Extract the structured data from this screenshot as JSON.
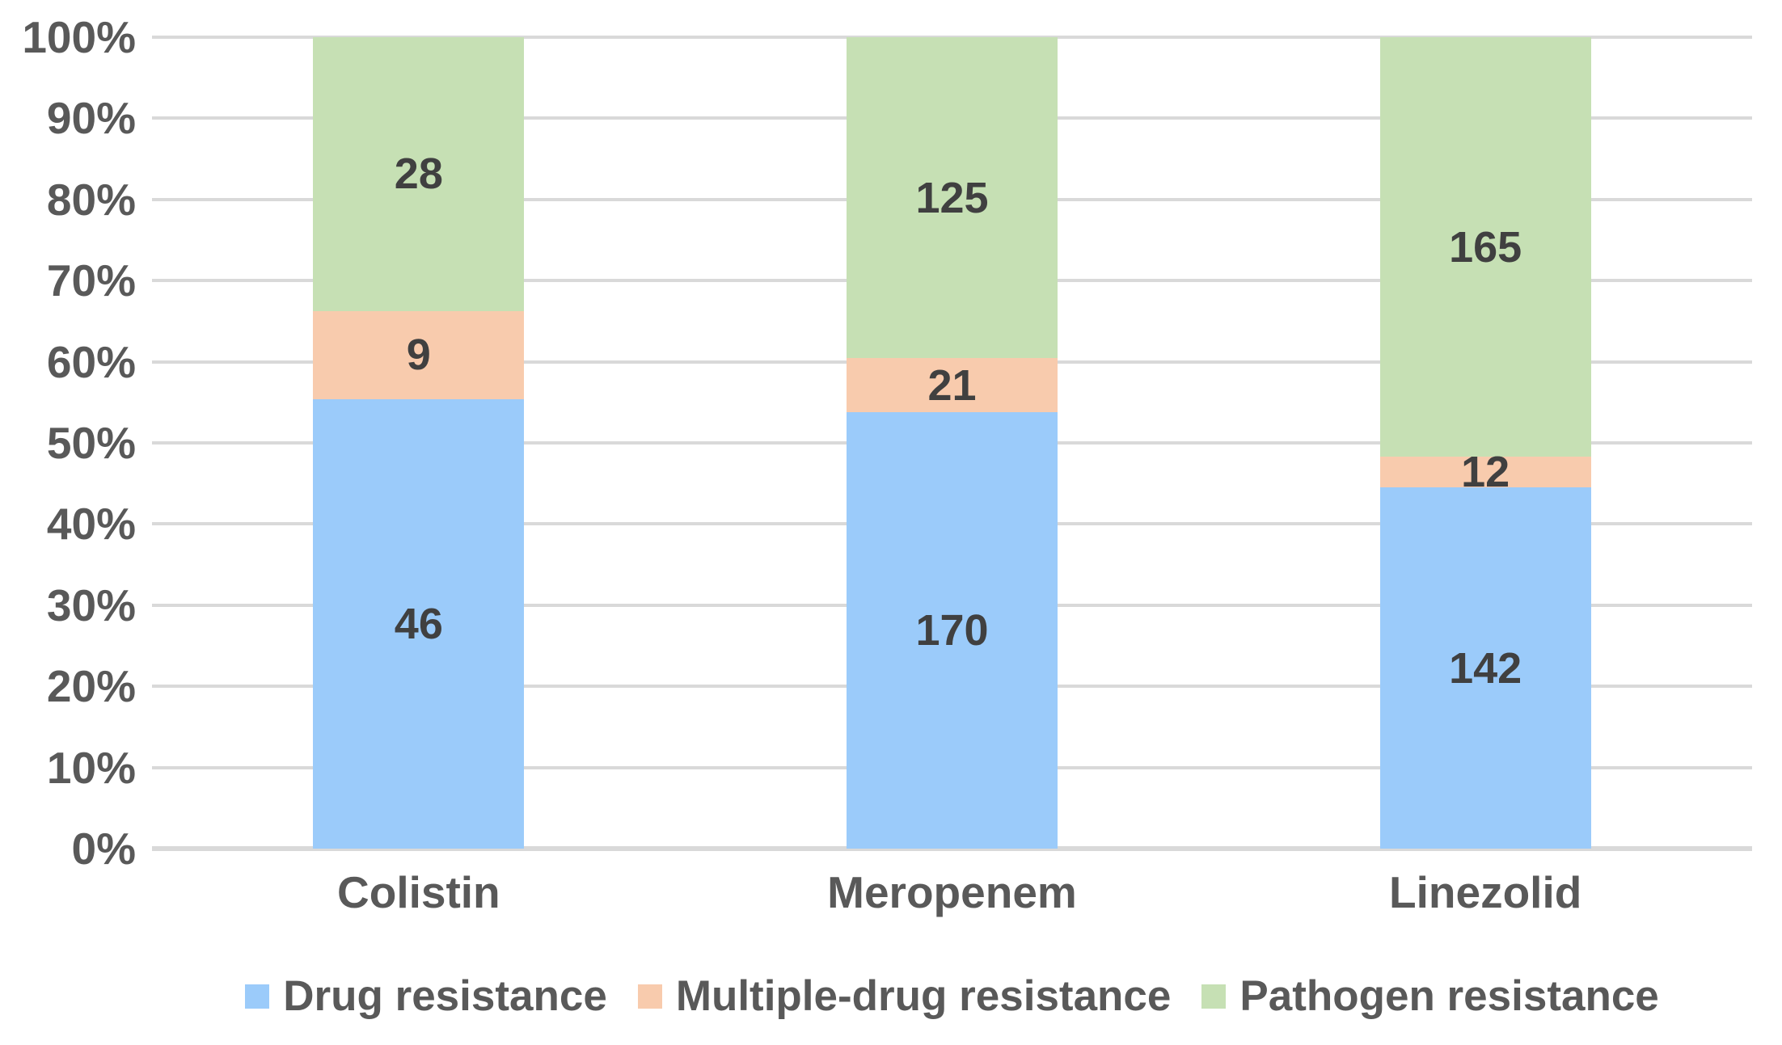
{
  "chart_data": {
    "type": "bar",
    "variant": "100-percent-stacked-column",
    "title": "",
    "categories": [
      "Colistin",
      "Meropenem",
      "Linezolid"
    ],
    "series": [
      {
        "name": "Drug resistance",
        "color": "#9BCBFA",
        "values": [
          46,
          170,
          142
        ]
      },
      {
        "name": "Multiple-drug resistance",
        "color": "#F8CBAD",
        "values": [
          9,
          21,
          12
        ]
      },
      {
        "name": "Pathogen resistance",
        "color": "#C6E0B4",
        "values": [
          28,
          125,
          165
        ]
      }
    ],
    "data_labels_visible": true,
    "y_axis": {
      "min": 0,
      "max": 100,
      "unit": "%",
      "tick_labels": [
        "0%",
        "10%",
        "20%",
        "30%",
        "40%",
        "50%",
        "60%",
        "70%",
        "80%",
        "90%",
        "100%"
      ],
      "gridlines": true
    },
    "legend_position": "bottom"
  },
  "colors": {
    "background": "#FFFFFF",
    "gridline": "#D9D9D9",
    "axis_text": "#595959",
    "category_text": "#595959",
    "legend_text": "#595959",
    "data_label_text": "#404040"
  }
}
